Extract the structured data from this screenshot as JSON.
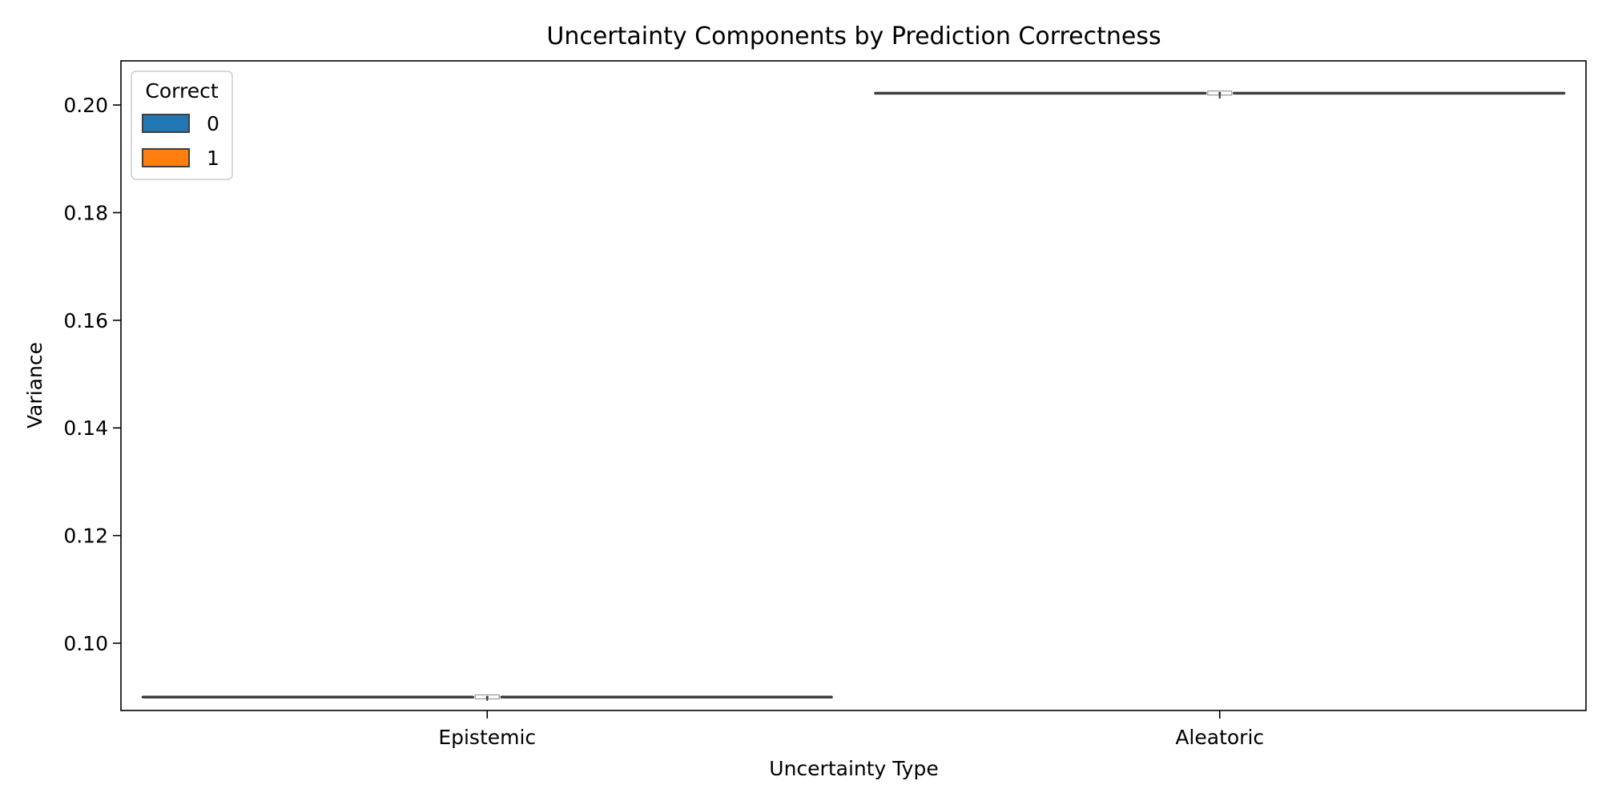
{
  "chart_data": {
    "type": "violin",
    "title": "Uncertainty Components by Prediction Correctness",
    "xlabel": "Uncertainty Type",
    "ylabel": "Variance",
    "categories": [
      "Epistemic",
      "Aleatoric"
    ],
    "ylim": [
      0.0875,
      0.2082
    ],
    "yticks": [
      0.1,
      0.12,
      0.14,
      0.16,
      0.18,
      0.2
    ],
    "ytick_labels": [
      "0.10",
      "0.12",
      "0.14",
      "0.16",
      "0.18",
      "0.20"
    ],
    "grid": false,
    "legend": {
      "title": "Correct",
      "placement": "upper-left",
      "entries": [
        {
          "label": "0",
          "color": "#1f77b4"
        },
        {
          "label": "1",
          "color": "#ff7f0e"
        }
      ]
    },
    "series": [
      {
        "name": "0",
        "color": "#1f77b4",
        "values": [
          {
            "min": 0.09,
            "q1": 0.09,
            "median": 0.09,
            "q3": 0.09,
            "max": 0.09
          },
          {
            "min": 0.2022,
            "q1": 0.2022,
            "median": 0.2022,
            "q3": 0.2022,
            "max": 0.2022
          }
        ]
      },
      {
        "name": "1",
        "color": "#ff7f0e",
        "values": [
          {
            "min": 0.0893,
            "q1": 0.0899,
            "median": 0.09,
            "q3": 0.0901,
            "max": 0.0901
          },
          {
            "min": 0.2012,
            "q1": 0.202,
            "median": 0.2022,
            "q3": 0.2023,
            "max": 0.2024
          }
        ]
      }
    ]
  }
}
